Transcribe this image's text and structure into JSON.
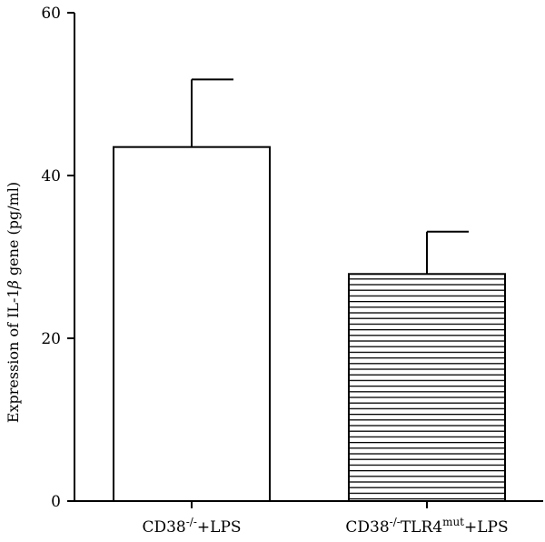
{
  "chart_data": {
    "type": "bar",
    "categories": [
      {
        "base": "CD38",
        "sup1": "-/-",
        "mid": "",
        "sup2": "",
        "tail": "+LPS"
      },
      {
        "base": "CD38",
        "sup1": "-/-",
        "mid": "TLR4",
        "sup2": "mut",
        "tail": "+LPS"
      }
    ],
    "values": [
      43.5,
      27.9
    ],
    "errors": [
      8.3,
      5.2
    ],
    "fills": [
      "#ffffff",
      "pattern-horizontal-lines"
    ],
    "ylabel": {
      "prefix": "Expression of IL-1",
      "symbol": "β",
      "suffix": " gene (pg/ml)"
    },
    "ylim": [
      0,
      60
    ],
    "yticks": [
      0,
      20,
      40,
      60
    ],
    "grid": false,
    "colors": {
      "axis": "#000000",
      "stroke": "#000000",
      "hatch": "#000000"
    }
  }
}
